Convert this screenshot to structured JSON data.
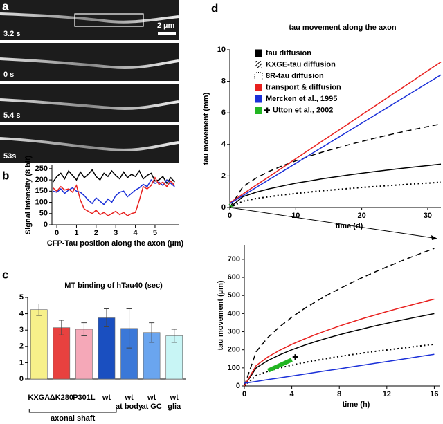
{
  "panel_labels": [
    "a",
    "b",
    "c",
    "d"
  ],
  "images": {
    "timestamps": [
      "3.2 s",
      "0 s",
      "5.4 s",
      "53s"
    ],
    "scale_bar": "2 µm"
  },
  "chart_data": [
    {
      "type": "line",
      "ylabel": "Signal intensity (8 bit)",
      "xlabel": "CFP-Tau position along the axon (µm)",
      "x": [
        -0.2,
        0,
        0.2,
        0.4,
        0.6,
        0.8,
        1.0,
        1.2,
        1.4,
        1.6,
        1.8,
        2.0,
        2.2,
        2.4,
        2.6,
        2.8,
        3.0,
        3.2,
        3.4,
        3.6,
        3.8,
        4.0,
        4.2,
        4.4,
        4.6,
        4.8,
        5.0,
        5.2,
        5.4,
        5.6,
        5.8,
        6.0
      ],
      "series": [
        {
          "color": "#000000",
          "style": "solid",
          "values": [
            190,
            215,
            230,
            205,
            240,
            220,
            200,
            235,
            210,
            225,
            245,
            215,
            200,
            230,
            215,
            240,
            220,
            205,
            235,
            210,
            225,
            215,
            240,
            205,
            220,
            230,
            195,
            200,
            215,
            185,
            210,
            190
          ]
        },
        {
          "color": "#1a2fd8",
          "style": "solid",
          "values": [
            150,
            145,
            160,
            140,
            155,
            165,
            150,
            145,
            130,
            110,
            95,
            120,
            105,
            90,
            115,
            100,
            130,
            145,
            150,
            125,
            140,
            155,
            165,
            180,
            170,
            200,
            185,
            190,
            175,
            200,
            185,
            170
          ]
        },
        {
          "color": "#e8201e",
          "style": "solid",
          "values": [
            165,
            150,
            170,
            155,
            160,
            145,
            175,
            110,
            70,
            60,
            50,
            65,
            45,
            55,
            40,
            50,
            60,
            45,
            55,
            40,
            50,
            55,
            110,
            170,
            160,
            175,
            210,
            180,
            190,
            170,
            195,
            175
          ]
        }
      ],
      "xlim": [
        -0.25,
        6.2
      ],
      "ylim": [
        0,
        265
      ],
      "xticks": [
        0,
        1,
        2,
        3,
        4,
        5
      ],
      "yticks": [
        0,
        50,
        100,
        150,
        200,
        250
      ]
    },
    {
      "type": "bar",
      "title": "MT binding of hTau40 (sec)",
      "categories": [
        "KXGA",
        "ΔK280",
        "P301L",
        "wt",
        "wt\nat body",
        "wt\nat GC",
        "wt\nglia"
      ],
      "values": [
        4.25,
        3.15,
        3.05,
        3.75,
        3.1,
        2.85,
        2.65
      ],
      "errors": [
        0.35,
        0.45,
        0.4,
        0.55,
        1.2,
        0.6,
        0.4
      ],
      "colors": [
        "#f7f08a",
        "#e8413f",
        "#f5a8b8",
        "#1a4fc0",
        "#3b78d8",
        "#6aa5ef",
        "#c8f5f5"
      ],
      "group_label": "axonal shaft",
      "ylim": [
        0,
        5
      ],
      "yticks": [
        0,
        1,
        2,
        3,
        4,
        5
      ]
    },
    {
      "type": "line",
      "title": "tau movement along the axon",
      "ylabel": "tau movement (mm)",
      "xlabel": "time (d)",
      "x": [
        0,
        2,
        4,
        6,
        8,
        10,
        12,
        14,
        16,
        18,
        20,
        22,
        24,
        26,
        28,
        30,
        32
      ],
      "series": [
        {
          "name": "tau diffusion",
          "color": "#000000",
          "style": "solid",
          "values": [
            0,
            0.69,
            0.97,
            1.19,
            1.37,
            1.54,
            1.68,
            1.82,
            1.94,
            2.06,
            2.17,
            2.28,
            2.38,
            2.48,
            2.57,
            2.66,
            2.75
          ]
        },
        {
          "name": "KXGE-tau diffusion",
          "color": "#000000",
          "style": "dashed",
          "values": [
            0,
            1.33,
            1.87,
            2.3,
            2.65,
            2.96,
            3.25,
            3.51,
            3.75,
            3.98,
            4.19,
            4.4,
            4.59,
            4.78,
            4.96,
            5.13,
            5.3
          ]
        },
        {
          "name": "8R-tau diffusion",
          "color": "#000000",
          "style": "dotted",
          "values": [
            0,
            0.4,
            0.57,
            0.69,
            0.8,
            0.89,
            0.98,
            1.06,
            1.13,
            1.2,
            1.27,
            1.33,
            1.39,
            1.44,
            1.5,
            1.55,
            1.6
          ]
        },
        {
          "name": "transport  & diffusion",
          "color": "#e8201e",
          "style": "solid",
          "values": [
            0.3,
            0.86,
            1.42,
            1.97,
            2.53,
            3.09,
            3.65,
            4.21,
            4.76,
            5.32,
            5.88,
            6.44,
            7.0,
            7.55,
            8.11,
            8.67,
            9.23
          ]
        },
        {
          "name": "Mercken et al., 1995",
          "color": "#1a2fd8",
          "style": "solid",
          "values": [
            0.25,
            0.76,
            1.27,
            1.78,
            2.29,
            2.8,
            3.31,
            3.82,
            4.33,
            4.84,
            5.35,
            5.86,
            6.37,
            6.88,
            7.39,
            7.9,
            8.41
          ]
        },
        {
          "name": "Utton et al., 2002",
          "color": "#22b522",
          "style": "thick",
          "x": [
            0.08,
            0.17
          ],
          "values": [
            0.09,
            0.15
          ]
        }
      ],
      "xlim": [
        0,
        32
      ],
      "ylim": [
        0,
        10
      ],
      "xticks": [
        0,
        10,
        20,
        30
      ],
      "yticks": [
        0,
        2,
        4,
        6,
        8,
        10
      ]
    },
    {
      "type": "line",
      "ylabel": "tau movement (µm)",
      "xlabel": "time (h)",
      "x": [
        0,
        1,
        2,
        3,
        4,
        5,
        6,
        7,
        8,
        9,
        10,
        11,
        12,
        13,
        14,
        15,
        16
      ],
      "series": [
        {
          "color": "#000000",
          "style": "solid",
          "values": [
            0,
            100,
            141,
            173,
            200,
            224,
            245,
            265,
            283,
            300,
            316,
            332,
            346,
            361,
            374,
            387,
            400
          ]
        },
        {
          "color": "#000000",
          "style": "dashed",
          "values": [
            0,
            190,
            269,
            329,
            380,
            425,
            465,
            503,
            537,
            570,
            601,
            630,
            658,
            685,
            711,
            736,
            760
          ]
        },
        {
          "color": "#000000",
          "style": "dotted",
          "values": [
            0,
            58,
            81,
            100,
            115,
            129,
            141,
            152,
            163,
            173,
            182,
            191,
            199,
            207,
            215,
            223,
            230
          ]
        },
        {
          "color": "#e8201e",
          "style": "solid",
          "values": [
            0,
            113,
            161,
            198,
            230,
            258,
            284,
            308,
            331,
            352,
            373,
            392,
            411,
            429,
            446,
            463,
            480
          ]
        },
        {
          "color": "#1a2fd8",
          "style": "solid",
          "values": [
            15,
            25,
            35,
            45,
            55,
            65,
            75,
            85,
            95,
            105,
            115,
            125,
            135,
            145,
            155,
            165,
            175
          ]
        },
        {
          "color": "#22b522",
          "style": "thick",
          "x": [
            2,
            4
          ],
          "values": [
            85,
            145
          ]
        },
        {
          "color": "#000000",
          "style": "cross",
          "x": [
            4.3
          ],
          "values": [
            160
          ]
        }
      ],
      "xlim": [
        0,
        16.5
      ],
      "ylim": [
        0,
        780
      ],
      "xticks": [
        0,
        4,
        8,
        12,
        16
      ],
      "yticks": [
        0,
        100,
        200,
        300,
        400,
        500,
        600,
        700
      ]
    }
  ]
}
